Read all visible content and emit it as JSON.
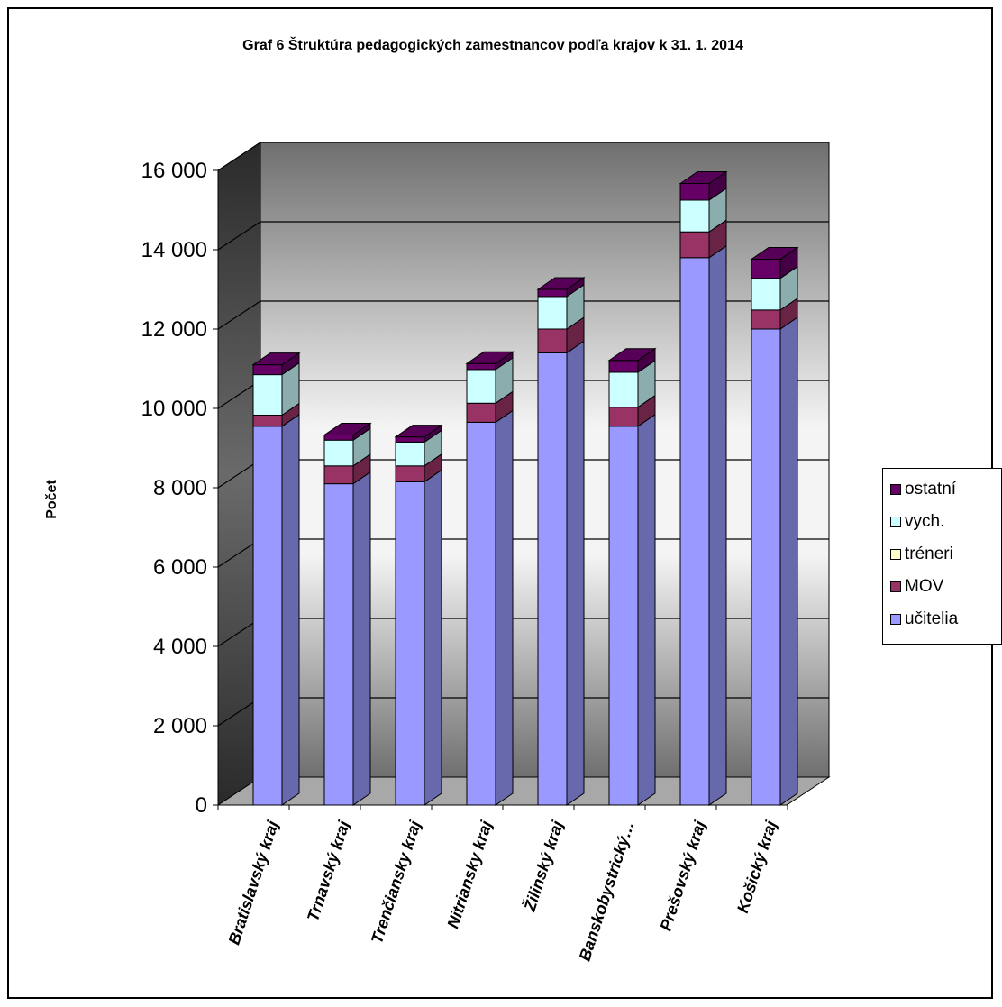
{
  "chart_data": {
    "type": "bar",
    "stacked": true,
    "three_d": true,
    "title": "Graf 6 Štruktúra pedagogických zamestnancov podľa krajov k  31. 1. 2014",
    "xlabel": "",
    "ylabel": "Počet",
    "ylim": [
      0,
      16000
    ],
    "yticks": [
      0,
      2000,
      4000,
      6000,
      8000,
      10000,
      12000,
      14000,
      16000
    ],
    "ytick_labels": [
      "0",
      "2 000",
      "4 000",
      "6 000",
      "8 000",
      "10 000",
      "12 000",
      "14 000",
      "16 000"
    ],
    "grid": true,
    "legend_position": "right",
    "categories": [
      "Bratislavský kraj",
      "Trnavský kraj",
      "Trenčiansky kraj",
      "Nitriansky kraj",
      "Žilinský kraj",
      "Banskobystrický…",
      "Prešovský kraj",
      "Košický kraj"
    ],
    "series": [
      {
        "name": "učitelia",
        "color": "#9999ff",
        "values": [
          9550,
          8100,
          8150,
          9650,
          11400,
          9550,
          13800,
          12000
        ]
      },
      {
        "name": "MOV",
        "color": "#993366",
        "values": [
          280,
          450,
          400,
          480,
          600,
          480,
          650,
          480
        ]
      },
      {
        "name": "tréneri",
        "color": "#ffffcc",
        "values": [
          0,
          0,
          0,
          0,
          0,
          0,
          0,
          0
        ]
      },
      {
        "name": "vych.",
        "color": "#ccffff",
        "values": [
          1020,
          650,
          600,
          850,
          820,
          880,
          800,
          800
        ]
      },
      {
        "name": "ostatní",
        "color": "#660066",
        "values": [
          250,
          130,
          130,
          150,
          180,
          300,
          420,
          480
        ]
      }
    ]
  },
  "legend_order": [
    "ostatní",
    "vych.",
    "tréneri",
    "MOV",
    "učitelia"
  ]
}
